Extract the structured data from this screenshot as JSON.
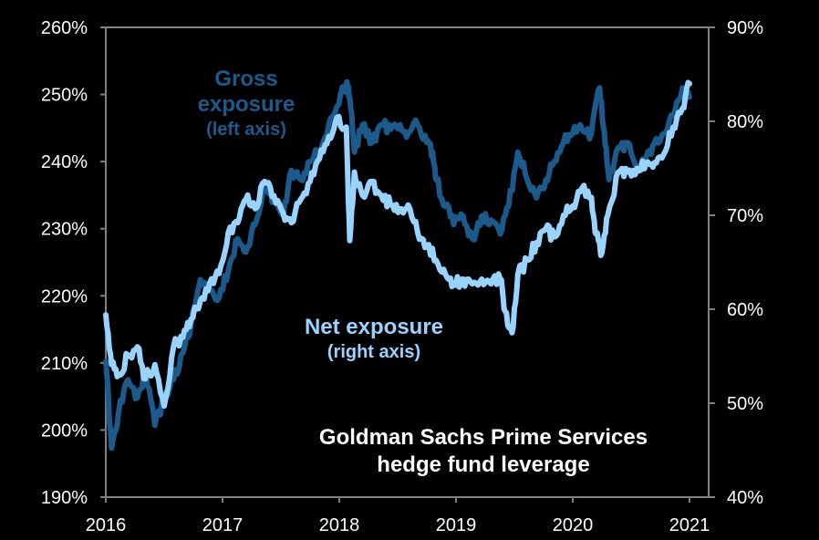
{
  "chart_data": {
    "type": "line",
    "title": "Goldman Sachs Prime Services hedge fund leverage",
    "title_lines": [
      "Goldman Sachs Prime Services",
      "hedge fund leverage"
    ],
    "xlabel": "",
    "ylabel_left": "",
    "ylabel_right": "",
    "x_ticks": [
      "2016",
      "2017",
      "2018",
      "2019",
      "2020",
      "2021"
    ],
    "x_range": [
      2016.0,
      2021.0
    ],
    "ylim_left": [
      190,
      260
    ],
    "ylim_right": [
      40,
      90
    ],
    "y_ticks_left": [
      "190%",
      "200%",
      "210%",
      "220%",
      "230%",
      "240%",
      "250%",
      "260%"
    ],
    "y_ticks_right": [
      "40%",
      "50%",
      "60%",
      "70%",
      "80%",
      "90%"
    ],
    "grid": false,
    "legend": "inline annotations",
    "background": "#000000",
    "axis_color": "#808080",
    "series": [
      {
        "name": "Gross exposure",
        "axis": "left",
        "annotation_lines": [
          "Gross",
          "exposure",
          "(left axis)"
        ],
        "color": "#1b5a8a",
        "x": [
          2016.0,
          2016.05,
          2016.11,
          2016.19,
          2016.27,
          2016.34,
          2016.42,
          2016.5,
          2016.58,
          2016.66,
          2016.73,
          2016.81,
          2016.89,
          2016.97,
          2017.05,
          2017.13,
          2017.2,
          2017.28,
          2017.36,
          2017.44,
          2017.52,
          2017.59,
          2017.67,
          2017.75,
          2017.83,
          2017.91,
          2017.98,
          2018.06,
          2018.09,
          2018.13,
          2018.2,
          2018.28,
          2018.36,
          2018.44,
          2018.52,
          2018.59,
          2018.67,
          2018.75,
          2018.8,
          2018.83,
          2018.91,
          2018.98,
          2019.06,
          2019.14,
          2019.22,
          2019.3,
          2019.38,
          2019.45,
          2019.53,
          2019.61,
          2019.69,
          2019.77,
          2019.84,
          2019.92,
          2020.0,
          2020.08,
          2020.16,
          2020.23,
          2020.27,
          2020.31,
          2020.39,
          2020.47,
          2020.55,
          2020.63,
          2020.7,
          2020.78,
          2020.86,
          2020.94,
          2021.0
        ],
        "values": [
          210.2,
          197.3,
          202.7,
          207.5,
          204.8,
          208.8,
          200.7,
          204.8,
          207.5,
          211.5,
          215.6,
          222.4,
          221.0,
          219.7,
          223.8,
          228.5,
          226.5,
          230.6,
          236.0,
          234.6,
          231.9,
          238.7,
          237.3,
          240.0,
          241.4,
          245.5,
          248.2,
          251.6,
          249.6,
          241.4,
          245.5,
          242.8,
          245.5,
          244.8,
          245.5,
          244.2,
          245.5,
          242.8,
          241.4,
          237.3,
          233.3,
          230.6,
          231.9,
          228.5,
          231.9,
          231.3,
          229.2,
          233.3,
          241.4,
          237.3,
          234.6,
          237.3,
          240.0,
          242.8,
          244.2,
          244.8,
          244.2,
          251.0,
          244.5,
          237.3,
          242.1,
          242.8,
          239.4,
          240.7,
          242.8,
          244.2,
          246.9,
          251.0,
          249.6
        ]
      },
      {
        "name": "Net exposure",
        "axis": "right",
        "annotation_lines": [
          "Net exposure",
          "(right axis)"
        ],
        "color": "#99d3ff",
        "x": [
          2016.0,
          2016.05,
          2016.11,
          2016.19,
          2016.27,
          2016.34,
          2016.42,
          2016.5,
          2016.58,
          2016.66,
          2016.73,
          2016.81,
          2016.89,
          2016.97,
          2017.05,
          2017.13,
          2017.2,
          2017.28,
          2017.36,
          2017.44,
          2017.52,
          2017.59,
          2017.67,
          2017.75,
          2017.83,
          2017.91,
          2017.98,
          2018.06,
          2018.09,
          2018.13,
          2018.2,
          2018.28,
          2018.36,
          2018.44,
          2018.52,
          2018.59,
          2018.67,
          2018.75,
          2018.83,
          2018.91,
          2018.98,
          2019.06,
          2019.14,
          2019.22,
          2019.3,
          2019.38,
          2019.42,
          2019.48,
          2019.53,
          2019.61,
          2019.69,
          2019.77,
          2019.84,
          2019.92,
          2020.0,
          2020.08,
          2020.16,
          2020.2,
          2020.25,
          2020.3,
          2020.39,
          2020.47,
          2020.55,
          2020.63,
          2020.7,
          2020.78,
          2020.86,
          2020.94,
          2021.0
        ],
        "values": [
          59.4,
          54.1,
          53.1,
          55.0,
          56.0,
          52.6,
          54.1,
          49.7,
          56.0,
          57.0,
          58.9,
          60.9,
          62.8,
          63.8,
          68.2,
          69.2,
          71.7,
          70.7,
          73.6,
          72.1,
          70.2,
          69.2,
          71.7,
          73.6,
          76.0,
          78.4,
          80.4,
          79.4,
          67.3,
          74.6,
          72.1,
          73.6,
          72.1,
          71.1,
          70.7,
          71.1,
          68.2,
          66.7,
          65.2,
          63.7,
          62.7,
          63.2,
          62.7,
          63.2,
          62.7,
          63.2,
          59.8,
          57.5,
          63.7,
          65.2,
          67.1,
          68.6,
          67.7,
          70.0,
          71.0,
          72.9,
          71.9,
          68.0,
          66.0,
          70.0,
          74.6,
          74.6,
          75.0,
          75.6,
          75.6,
          76.5,
          79.4,
          81.4,
          84.0
        ]
      }
    ]
  }
}
